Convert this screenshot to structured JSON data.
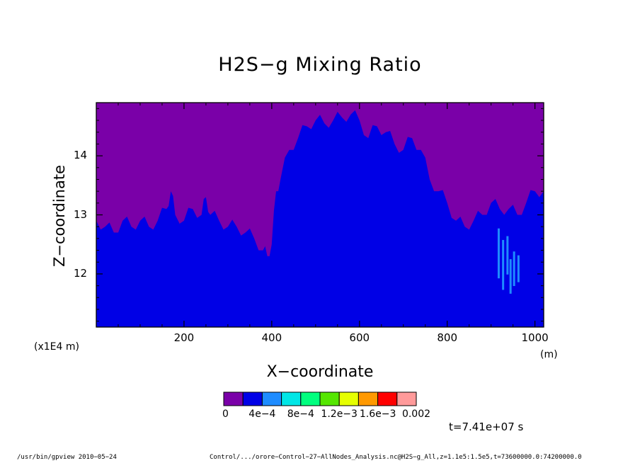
{
  "chart_data": {
    "type": "heatmap",
    "title": "H2S−g Mixing Ratio",
    "xlabel": "X−coordinate",
    "ylabel": "Z−coordinate",
    "x_unit_left": "(x1E4 m)",
    "x_unit_right": "(m)",
    "xlim": [
      0,
      1020
    ],
    "ylim": [
      11.1,
      14.9
    ],
    "x_ticks": [
      200,
      400,
      600,
      800,
      1000
    ],
    "x_tick_labels": [
      "200",
      "400",
      "600",
      "800",
      "1000"
    ],
    "y_ticks": [
      12,
      13,
      14
    ],
    "y_tick_labels": [
      "12",
      "13",
      "14"
    ],
    "colorbar": {
      "colors": [
        "#7a00a8",
        "#0000e6",
        "#1e8cff",
        "#00e6e6",
        "#00ff7f",
        "#55e600",
        "#e6ff00",
        "#ff9900",
        "#ff0000",
        "#ff9a9a"
      ],
      "labels": [
        "0",
        "4e−4",
        "8e−4",
        "1.2e−3",
        "1.6e−3",
        "0.002"
      ],
      "label_positions": [
        0,
        2,
        4,
        6,
        8,
        10
      ]
    },
    "boundary_purple_blue": {
      "x": [
        0,
        20,
        40,
        60,
        80,
        100,
        120,
        140,
        160,
        170,
        180,
        200,
        220,
        240,
        250,
        260,
        280,
        300,
        320,
        340,
        360,
        380,
        390,
        400,
        410,
        420,
        440,
        460,
        480,
        500,
        520,
        540,
        560,
        580,
        600,
        620,
        640,
        660,
        680,
        700,
        720,
        740,
        760,
        780,
        800,
        820,
        840,
        860,
        880,
        900,
        920,
        940,
        960,
        980,
        1000,
        1020
      ],
      "z": [
        12.9,
        12.8,
        12.7,
        12.9,
        12.8,
        12.9,
        12.8,
        12.9,
        13.1,
        13.4,
        13.0,
        12.9,
        13.1,
        13.0,
        13.3,
        13.0,
        12.9,
        12.8,
        12.8,
        12.7,
        12.6,
        12.4,
        12.3,
        12.5,
        13.4,
        13.6,
        14.1,
        14.3,
        14.5,
        14.6,
        14.55,
        14.6,
        14.65,
        14.7,
        14.6,
        14.3,
        14.5,
        14.4,
        14.2,
        14.1,
        14.3,
        14.1,
        13.6,
        13.4,
        13.2,
        12.9,
        12.8,
        12.9,
        13.0,
        13.2,
        13.1,
        13.1,
        13.0,
        13.2,
        13.4,
        13.4
      ]
    },
    "light_blue_patch": {
      "x_range": [
        880,
        980
      ],
      "z_range": [
        11.6,
        12.9
      ]
    }
  },
  "timestamp": "t=7.41e+07 s",
  "footer_left": "/usr/bin/gpview   2010−05−24",
  "footer_right": "Control/.../orore−Control−27−AllNodes_Analysis.nc@H2S−g_All,z=1.1e5:1.5e5,t=73600000.0:74200000.0"
}
